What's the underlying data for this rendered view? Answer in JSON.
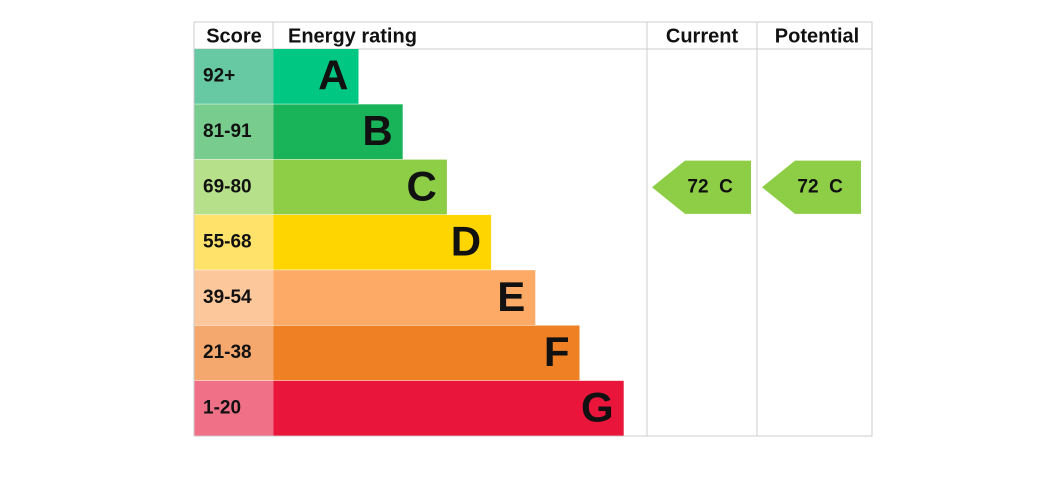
{
  "header": {
    "score": "Score",
    "rating": "Energy rating",
    "current": "Current",
    "potential": "Potential"
  },
  "bands": [
    {
      "score": "92+",
      "letter": "A",
      "color": "#00c781",
      "score_color": "#66c9a4"
    },
    {
      "score": "81-91",
      "letter": "B",
      "color": "#19b459",
      "score_color": "#78cc8e"
    },
    {
      "score": "69-80",
      "letter": "C",
      "color": "#8dce46",
      "score_color": "#b7e08a"
    },
    {
      "score": "55-68",
      "letter": "D",
      "color": "#ffd500",
      "score_color": "#ffe26a"
    },
    {
      "score": "39-54",
      "letter": "E",
      "color": "#fcaa65",
      "score_color": "#fdc79c"
    },
    {
      "score": "21-38",
      "letter": "F",
      "color": "#ef8023",
      "score_color": "#f4a86e"
    },
    {
      "score": "1-20",
      "letter": "G",
      "color": "#e9153b",
      "score_color": "#f07187"
    }
  ],
  "current": {
    "value": 72,
    "rating": "C"
  },
  "potential": {
    "value": 72,
    "rating": "C"
  }
}
